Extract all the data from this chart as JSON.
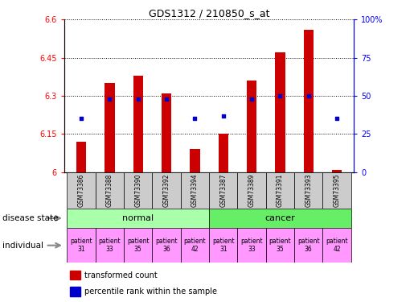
{
  "title": "GDS1312 / 210850_s_at",
  "samples": [
    "GSM73386",
    "GSM73388",
    "GSM73390",
    "GSM73392",
    "GSM73394",
    "GSM73387",
    "GSM73389",
    "GSM73391",
    "GSM73393",
    "GSM73395"
  ],
  "transformed_counts": [
    6.12,
    6.35,
    6.38,
    6.31,
    6.09,
    6.15,
    6.36,
    6.47,
    6.56,
    6.01
  ],
  "percentile_ranks": [
    35,
    48,
    48,
    48,
    35,
    37,
    48,
    50,
    50,
    35
  ],
  "ylim_left": [
    6.0,
    6.6
  ],
  "ylim_right": [
    0,
    100
  ],
  "yticks_left": [
    6.0,
    6.15,
    6.3,
    6.45,
    6.6
  ],
  "yticks_right": [
    0,
    25,
    50,
    75,
    100
  ],
  "ytick_labels_left": [
    "6",
    "6.15",
    "6.3",
    "6.45",
    "6.6"
  ],
  "ytick_labels_right": [
    "0",
    "25",
    "50",
    "75",
    "100%"
  ],
  "disease_state": [
    "normal",
    "normal",
    "normal",
    "normal",
    "normal",
    "cancer",
    "cancer",
    "cancer",
    "cancer",
    "cancer"
  ],
  "individuals": [
    "patient\n31",
    "patient\n33",
    "patient\n35",
    "patient\n36",
    "patient\n42",
    "patient\n31",
    "patient\n33",
    "patient\n35",
    "patient\n36",
    "patient\n42"
  ],
  "bar_color": "#cc0000",
  "dot_color": "#0000cc",
  "normal_color": "#aaffaa",
  "cancer_color": "#66ee66",
  "patient_color": "#ff99ff",
  "sample_bg_color": "#cccccc",
  "bar_width": 0.35,
  "legend_bar_label": "transformed count",
  "legend_dot_label": "percentile rank within the sample",
  "disease_state_label": "disease state",
  "individual_label": "individual"
}
